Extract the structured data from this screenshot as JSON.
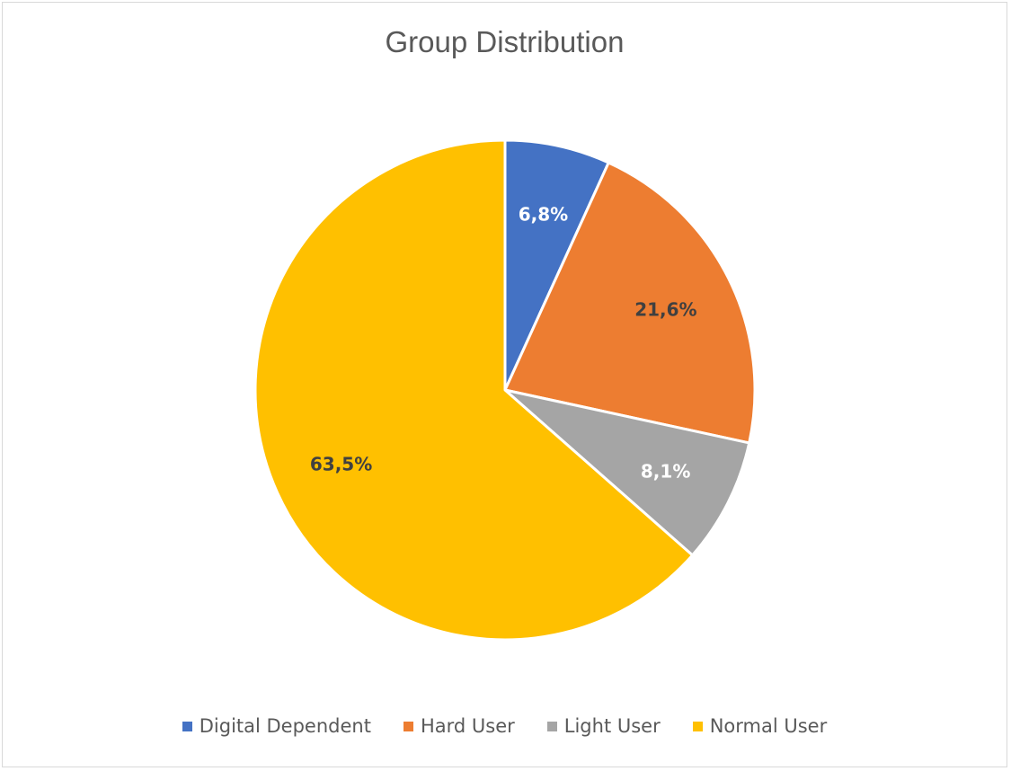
{
  "chart_data": {
    "type": "pie",
    "title": "Group Distribution",
    "slices": [
      {
        "label": "Digital Dependent",
        "value": 6.8,
        "display": "6,8%",
        "color": "#4472C4",
        "label_color": "#ffffff"
      },
      {
        "label": "Hard User",
        "value": 21.6,
        "display": "21,6%",
        "color": "#ED7D31",
        "label_color": "#404040"
      },
      {
        "label": "Light User",
        "value": 8.1,
        "display": "8,1%",
        "color": "#A5A5A5",
        "label_color": "#ffffff"
      },
      {
        "label": "Normal User",
        "value": 63.5,
        "display": "63,5%",
        "color": "#FFC000",
        "label_color": "#404040"
      }
    ],
    "legend_position": "bottom",
    "slice_border_color": "#ffffff"
  }
}
